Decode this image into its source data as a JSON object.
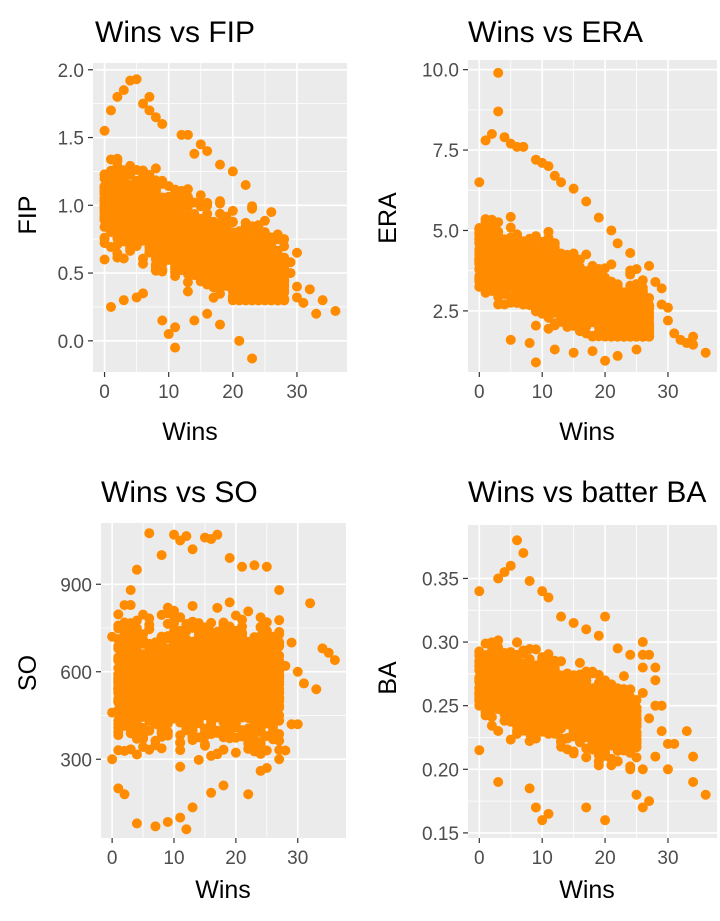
{
  "colors": {
    "point": "#FF8C00",
    "panel_bg": "#EBEBEB",
    "grid": "#FFFFFF",
    "tick_text": "#4D4D4D",
    "tick_mark": "#333333"
  },
  "chart_data": [
    {
      "type": "scatter",
      "title": "Wins vs FIP",
      "xlabel": "Wins",
      "ylabel": "FIP",
      "xlim": [
        -1.8,
        37.8
      ],
      "ylim": [
        -0.23,
        2.05
      ],
      "xticks": [
        0,
        10,
        20,
        30
      ],
      "xtick_labels": [
        "0",
        "10",
        "20",
        "30"
      ],
      "yticks": [
        0,
        0.5,
        1,
        1.5,
        2
      ],
      "ytick_labels": [
        "0.0",
        "0.5",
        "1.0",
        "1.5",
        "2.0"
      ],
      "mass": {
        "x_range": [
          0,
          28
        ],
        "slope": -0.022,
        "intercept": 1.05,
        "spread": 0.3,
        "floor": 0.3,
        "ceil": 1.65,
        "n": 1500
      },
      "points": [
        {
          "x": 3,
          "y": 1.85
        },
        {
          "x": 4,
          "y": 1.92
        },
        {
          "x": 5,
          "y": 1.93
        },
        {
          "x": 2,
          "y": 1.8
        },
        {
          "x": 6,
          "y": 1.75
        },
        {
          "x": 7,
          "y": 1.8
        },
        {
          "x": 1,
          "y": 1.7
        },
        {
          "x": 8,
          "y": 1.65
        },
        {
          "x": 12,
          "y": 1.52
        },
        {
          "x": 15,
          "y": 1.45
        },
        {
          "x": 0,
          "y": 1.55
        },
        {
          "x": 0,
          "y": 0.6
        },
        {
          "x": 0,
          "y": 0.75
        },
        {
          "x": 1,
          "y": 0.25
        },
        {
          "x": 3,
          "y": 0.3
        },
        {
          "x": 5,
          "y": 0.32
        },
        {
          "x": 6,
          "y": 0.35
        },
        {
          "x": 9,
          "y": 0.15
        },
        {
          "x": 10,
          "y": 0.05
        },
        {
          "x": 11,
          "y": 0.1
        },
        {
          "x": 11,
          "y": -0.05
        },
        {
          "x": 14,
          "y": 0.15
        },
        {
          "x": 16,
          "y": 0.2
        },
        {
          "x": 18,
          "y": 0.12
        },
        {
          "x": 21,
          "y": 0.0
        },
        {
          "x": 23,
          "y": -0.13
        },
        {
          "x": 24,
          "y": 0.3
        },
        {
          "x": 25,
          "y": 0.35
        },
        {
          "x": 26,
          "y": 0.45
        },
        {
          "x": 27,
          "y": 0.42
        },
        {
          "x": 28,
          "y": 0.55
        },
        {
          "x": 29,
          "y": 0.5
        },
        {
          "x": 30,
          "y": 0.4
        },
        {
          "x": 30,
          "y": 0.32
        },
        {
          "x": 31,
          "y": 0.28
        },
        {
          "x": 32,
          "y": 0.38
        },
        {
          "x": 33,
          "y": 0.2
        },
        {
          "x": 34,
          "y": 0.3
        },
        {
          "x": 36,
          "y": 0.22
        },
        {
          "x": 30,
          "y": 0.65
        },
        {
          "x": 29,
          "y": 0.58
        },
        {
          "x": 24,
          "y": 0.85
        },
        {
          "x": 26,
          "y": 0.95
        },
        {
          "x": 28,
          "y": 0.75
        },
        {
          "x": 22,
          "y": 1.15
        },
        {
          "x": 20,
          "y": 1.25
        },
        {
          "x": 18,
          "y": 1.3
        },
        {
          "x": 16,
          "y": 1.4
        },
        {
          "x": 14,
          "y": 1.38
        },
        {
          "x": 13,
          "y": 1.52
        },
        {
          "x": 9,
          "y": 1.6
        },
        {
          "x": 7,
          "y": 1.7
        }
      ]
    },
    {
      "type": "scatter",
      "title": "Wins vs ERA",
      "xlabel": "Wins",
      "ylabel": "ERA",
      "xlim": [
        -1.8,
        37.8
      ],
      "ylim": [
        0.6,
        10.3
      ],
      "xticks": [
        0,
        10,
        20,
        30
      ],
      "xtick_labels": [
        "0",
        "10",
        "20",
        "30"
      ],
      "yticks": [
        2.5,
        5,
        7.5,
        10
      ],
      "ytick_labels": [
        "2.5",
        "5.0",
        "7.5",
        "10.0"
      ],
      "mass": {
        "x_range": [
          0,
          27
        ],
        "slope": -0.085,
        "intercept": 4.35,
        "spread": 1.05,
        "floor": 1.7,
        "ceil": 7.0,
        "n": 1500
      },
      "points": [
        {
          "x": 3,
          "y": 9.9
        },
        {
          "x": 3,
          "y": 8.7
        },
        {
          "x": 2,
          "y": 8.0
        },
        {
          "x": 1,
          "y": 7.8
        },
        {
          "x": 4,
          "y": 7.9
        },
        {
          "x": 5,
          "y": 7.7
        },
        {
          "x": 6,
          "y": 7.6
        },
        {
          "x": 7,
          "y": 7.6
        },
        {
          "x": 9,
          "y": 7.2
        },
        {
          "x": 11,
          "y": 7.0
        },
        {
          "x": 12,
          "y": 6.7
        },
        {
          "x": 15,
          "y": 6.3
        },
        {
          "x": 17,
          "y": 5.9
        },
        {
          "x": 19,
          "y": 5.4
        },
        {
          "x": 21,
          "y": 5.0
        },
        {
          "x": 22,
          "y": 4.6
        },
        {
          "x": 24,
          "y": 4.3
        },
        {
          "x": 25,
          "y": 3.8
        },
        {
          "x": 27,
          "y": 3.9
        },
        {
          "x": 28,
          "y": 3.4
        },
        {
          "x": 29,
          "y": 3.2
        },
        {
          "x": 30,
          "y": 2.6
        },
        {
          "x": 31,
          "y": 1.8
        },
        {
          "x": 32,
          "y": 1.6
        },
        {
          "x": 34,
          "y": 1.7
        },
        {
          "x": 34,
          "y": 1.45
        },
        {
          "x": 36,
          "y": 1.2
        },
        {
          "x": 33,
          "y": 1.5
        },
        {
          "x": 30,
          "y": 2.2
        },
        {
          "x": 29,
          "y": 2.7
        },
        {
          "x": 9,
          "y": 0.9
        },
        {
          "x": 20,
          "y": 0.95
        },
        {
          "x": 22,
          "y": 1.1
        },
        {
          "x": 25,
          "y": 1.3
        },
        {
          "x": 18,
          "y": 1.25
        },
        {
          "x": 15,
          "y": 1.2
        },
        {
          "x": 12,
          "y": 1.3
        },
        {
          "x": 8,
          "y": 1.5
        },
        {
          "x": 5,
          "y": 1.6
        },
        {
          "x": 0,
          "y": 3.5
        },
        {
          "x": 0,
          "y": 6.5
        },
        {
          "x": 13,
          "y": 6.5
        },
        {
          "x": 10,
          "y": 7.1
        }
      ]
    },
    {
      "type": "scatter",
      "title": "Wins vs SO",
      "xlabel": "Wins",
      "ylabel": "SO",
      "xlim": [
        -1.8,
        37.8
      ],
      "ylim": [
        30,
        1110
      ],
      "xticks": [
        0,
        10,
        20,
        30
      ],
      "xtick_labels": [
        "0",
        "10",
        "20",
        "30"
      ],
      "yticks": [
        300,
        600,
        900
      ],
      "ytick_labels": [
        "300",
        "600",
        "900"
      ],
      "mass": {
        "x_range": [
          1,
          27
        ],
        "slope": 0,
        "intercept": 560,
        "spread": 195,
        "floor": 120,
        "ceil": 960,
        "n": 1600
      },
      "points": [
        {
          "x": 6,
          "y": 1075
        },
        {
          "x": 10,
          "y": 1070
        },
        {
          "x": 11,
          "y": 1050
        },
        {
          "x": 12,
          "y": 1065
        },
        {
          "x": 15,
          "y": 1060
        },
        {
          "x": 16,
          "y": 1055
        },
        {
          "x": 17,
          "y": 1070
        },
        {
          "x": 8,
          "y": 1000
        },
        {
          "x": 13,
          "y": 1020
        },
        {
          "x": 4,
          "y": 950
        },
        {
          "x": 3,
          "y": 880
        },
        {
          "x": 19,
          "y": 990
        },
        {
          "x": 21,
          "y": 960
        },
        {
          "x": 23,
          "y": 965
        },
        {
          "x": 25,
          "y": 960
        },
        {
          "x": 27,
          "y": 880
        },
        {
          "x": 32,
          "y": 835
        },
        {
          "x": 34,
          "y": 680
        },
        {
          "x": 35,
          "y": 665
        },
        {
          "x": 36,
          "y": 640
        },
        {
          "x": 30,
          "y": 600
        },
        {
          "x": 31,
          "y": 560
        },
        {
          "x": 33,
          "y": 540
        },
        {
          "x": 29,
          "y": 700
        },
        {
          "x": 28,
          "y": 620
        },
        {
          "x": 29,
          "y": 420
        },
        {
          "x": 30,
          "y": 420
        },
        {
          "x": 26,
          "y": 390
        },
        {
          "x": 28,
          "y": 330
        },
        {
          "x": 27,
          "y": 300
        },
        {
          "x": 25,
          "y": 270
        },
        {
          "x": 24,
          "y": 260
        },
        {
          "x": 22,
          "y": 180
        },
        {
          "x": 18,
          "y": 210
        },
        {
          "x": 16,
          "y": 185
        },
        {
          "x": 13,
          "y": 135
        },
        {
          "x": 11,
          "y": 100
        },
        {
          "x": 12,
          "y": 60
        },
        {
          "x": 9,
          "y": 85
        },
        {
          "x": 7,
          "y": 70
        },
        {
          "x": 4,
          "y": 80
        },
        {
          "x": 2,
          "y": 180
        },
        {
          "x": 0,
          "y": 720
        },
        {
          "x": 0,
          "y": 460
        },
        {
          "x": 0,
          "y": 300
        },
        {
          "x": 1,
          "y": 200
        }
      ]
    },
    {
      "type": "scatter",
      "title": "Wins vs batter BA",
      "xlabel": "Wins",
      "ylabel": "BA",
      "xlim": [
        -1.8,
        37.8
      ],
      "ylim": [
        0.146,
        0.392
      ],
      "xticks": [
        0,
        10,
        20,
        30
      ],
      "xtick_labels": [
        "0",
        "10",
        "20",
        "30"
      ],
      "yticks": [
        0.15,
        0.2,
        0.25,
        0.3,
        0.35
      ],
      "ytick_labels": [
        "0.15",
        "0.20",
        "0.25",
        "0.30",
        "0.35"
      ],
      "mass": {
        "x_range": [
          0,
          25
        ],
        "slope": -0.0016,
        "intercept": 0.272,
        "spread": 0.027,
        "floor": 0.185,
        "ceil": 0.335,
        "n": 1400
      },
      "points": [
        {
          "x": 6,
          "y": 0.38
        },
        {
          "x": 7,
          "y": 0.37
        },
        {
          "x": 5,
          "y": 0.36
        },
        {
          "x": 4,
          "y": 0.355
        },
        {
          "x": 3,
          "y": 0.35
        },
        {
          "x": 8,
          "y": 0.348
        },
        {
          "x": 10,
          "y": 0.34
        },
        {
          "x": 11,
          "y": 0.335
        },
        {
          "x": 13,
          "y": 0.32
        },
        {
          "x": 15,
          "y": 0.315
        },
        {
          "x": 17,
          "y": 0.31
        },
        {
          "x": 19,
          "y": 0.305
        },
        {
          "x": 20,
          "y": 0.32
        },
        {
          "x": 22,
          "y": 0.295
        },
        {
          "x": 24,
          "y": 0.29
        },
        {
          "x": 26,
          "y": 0.29
        },
        {
          "x": 27,
          "y": 0.29
        },
        {
          "x": 28,
          "y": 0.28
        },
        {
          "x": 26,
          "y": 0.28
        },
        {
          "x": 28,
          "y": 0.27
        },
        {
          "x": 26,
          "y": 0.26
        },
        {
          "x": 28,
          "y": 0.25
        },
        {
          "x": 27,
          "y": 0.24
        },
        {
          "x": 29,
          "y": 0.23
        },
        {
          "x": 30,
          "y": 0.22
        },
        {
          "x": 28,
          "y": 0.21
        },
        {
          "x": 26,
          "y": 0.2
        },
        {
          "x": 24,
          "y": 0.2
        },
        {
          "x": 30,
          "y": 0.2
        },
        {
          "x": 33,
          "y": 0.23
        },
        {
          "x": 34,
          "y": 0.21
        },
        {
          "x": 34,
          "y": 0.19
        },
        {
          "x": 36,
          "y": 0.18
        },
        {
          "x": 26,
          "y": 0.3
        },
        {
          "x": 25,
          "y": 0.18
        },
        {
          "x": 27,
          "y": 0.175
        },
        {
          "x": 26,
          "y": 0.17
        },
        {
          "x": 20,
          "y": 0.16
        },
        {
          "x": 17,
          "y": 0.17
        },
        {
          "x": 11,
          "y": 0.165
        },
        {
          "x": 10,
          "y": 0.16
        },
        {
          "x": 9,
          "y": 0.17
        },
        {
          "x": 8,
          "y": 0.185
        },
        {
          "x": 3,
          "y": 0.19
        },
        {
          "x": 0,
          "y": 0.215
        },
        {
          "x": 0,
          "y": 0.25
        },
        {
          "x": 0,
          "y": 0.34
        },
        {
          "x": 31,
          "y": 0.22
        },
        {
          "x": 29,
          "y": 0.25
        }
      ]
    }
  ]
}
